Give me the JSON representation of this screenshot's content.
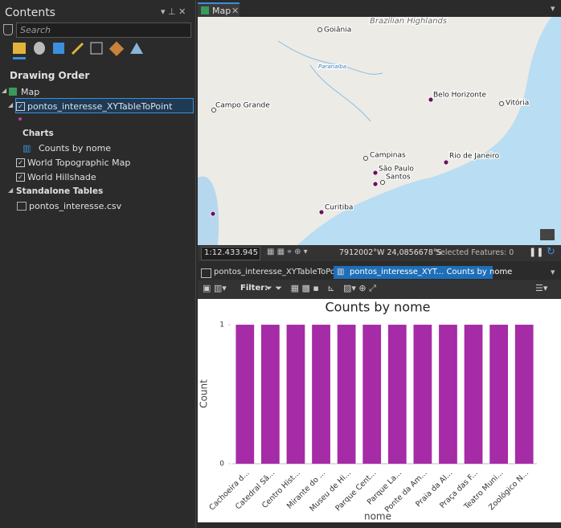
{
  "contents": {
    "title": "Contents",
    "search_placeholder": "Search",
    "section": "Drawing Order",
    "tree": [
      "Map",
      "pontos_interesse_XYTableToPoint",
      "Charts",
      "Counts by nome",
      "World Topographic Map",
      "World Hillshade",
      "Standalone Tables",
      "pontos_interesse.csv"
    ]
  },
  "map_view": {
    "tab": "Map",
    "labels": [
      "Brazilian Highlands",
      "Goiânia",
      "Paranaíba",
      "Campo Grande",
      "Belo Horizonte",
      "Vitória",
      "Campinas",
      "Rio de Janeiro",
      "São Paulo",
      "Santos",
      "Curitiba"
    ],
    "scale": "1:12.433.945",
    "coordinates": "7912002°W 24,0856678°S",
    "selected_features": "Selected Features: 0"
  },
  "bottom_tabs": [
    "pontos_interesse_XYTableToPoint",
    "pontos_interesse_XYT... Counts by nome"
  ],
  "chart_toolbar": {
    "filter_label": "Filter:"
  },
  "chart_data": {
    "type": "bar",
    "title": "Counts by nome",
    "x_label": "nome",
    "y_label": "Count",
    "categories": [
      "Cachoeira d...",
      "Catedral Sã...",
      "Centro Hist...",
      "Mirante do ...",
      "Museu de Hi...",
      "Parque Cent...",
      "Parque La...",
      "Ponte da Am...",
      "Praia da Al...",
      "Praça das F...",
      "Teatro Muni...",
      "Zoológico N..."
    ],
    "values": [
      1,
      1,
      1,
      1,
      1,
      1,
      1,
      1,
      1,
      1,
      1,
      1
    ],
    "color": "#a62ba6",
    "ylim": [
      0,
      1.035
    ],
    "yticks": [
      0,
      1
    ],
    "grid": false
  }
}
